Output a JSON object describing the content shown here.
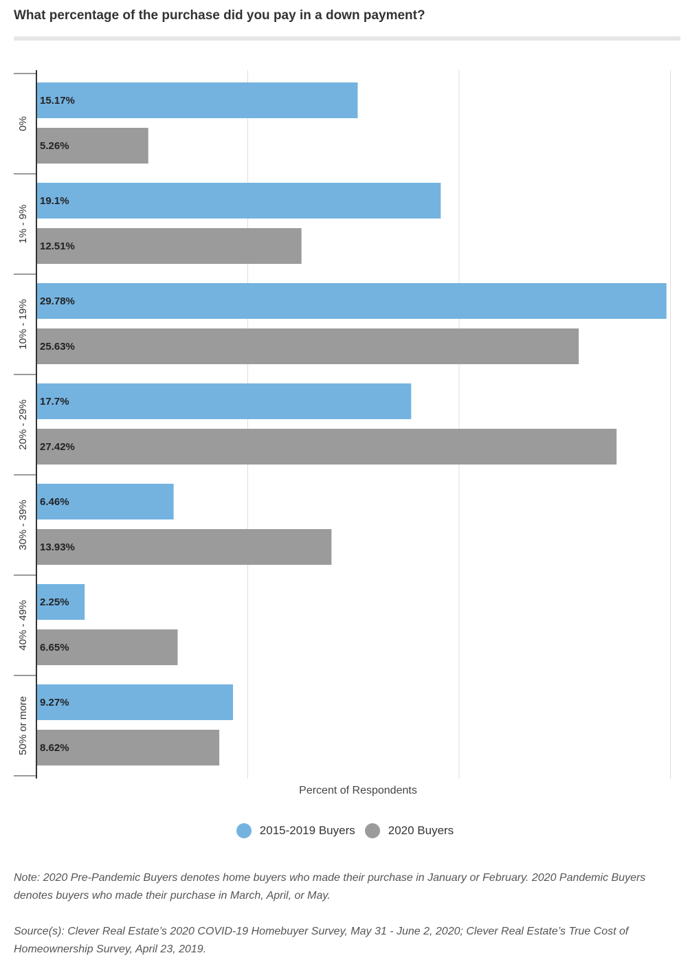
{
  "title": "What percentage of the purchase did you pay in a down payment?",
  "colors": {
    "series1": "#74b3e0",
    "series2": "#9b9b9b",
    "grid": "#dddddd",
    "axis": "#333333"
  },
  "legend": [
    {
      "label": "2015-2019 Buyers",
      "color": "#74b3e0"
    },
    {
      "label": "2020 Buyers",
      "color": "#9b9b9b"
    }
  ],
  "notes": {
    "note": "Note: 2020 Pre-Pandemic Buyers denotes home buyers who made their purchase in January or February. 2020 Pandemic Buyers denotes buyers who made their purchase in March, April, or May.",
    "source": "Source(s): Clever Real Estate’s 2020 COVID-19 Homebuyer Survey, May 31 - June 2, 2020; Clever Real Estate’s True Cost of Homeownership Survey, April 23, 2019."
  },
  "chart_data": {
    "type": "bar",
    "orientation": "horizontal",
    "title": "What percentage of the purchase did you pay in a down payment?",
    "xlabel": "Percent of Respondents",
    "ylabel": "",
    "categories": [
      "0%",
      "1% - 9%",
      "10% - 19%",
      "20% - 29%",
      "30% - 39%",
      "40% - 49%",
      "50% or more"
    ],
    "series": [
      {
        "name": "2015-2019 Buyers",
        "values": [
          15.17,
          19.1,
          29.78,
          17.7,
          6.46,
          2.25,
          9.27
        ],
        "labels": [
          "15.17%",
          "19.1%",
          "29.78%",
          "17.7%",
          "6.46%",
          "2.25%",
          "9.27%"
        ]
      },
      {
        "name": "2020 Buyers",
        "values": [
          5.26,
          12.51,
          25.63,
          27.42,
          13.93,
          6.65,
          8.62
        ],
        "labels": [
          "5.26%",
          "12.51%",
          "25.63%",
          "27.42%",
          "13.93%",
          "6.65%",
          "8.62%"
        ]
      }
    ],
    "xlim": [
      0,
      30
    ],
    "grid": true,
    "legend_position": "bottom"
  }
}
